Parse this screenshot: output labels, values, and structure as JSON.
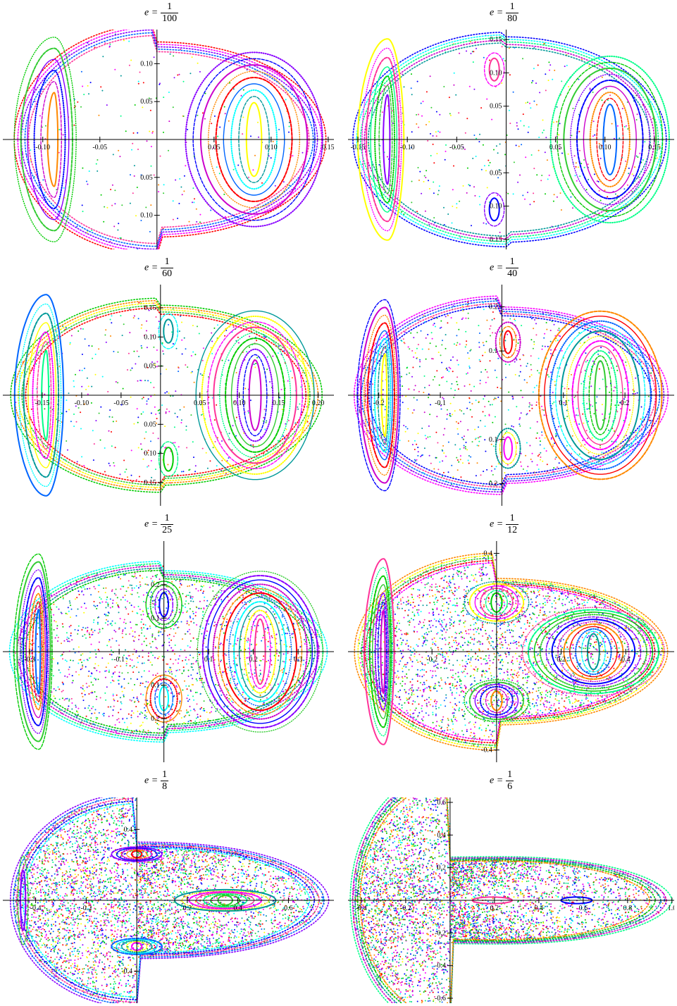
{
  "colors": [
    "#ff0000",
    "#0000ff",
    "#00cc00",
    "#ff00ff",
    "#00ffff",
    "#ff8800",
    "#8800ff",
    "#00ff88",
    "#ffff00",
    "#0066ff",
    "#cc00cc",
    "#33cc33",
    "#ff3399",
    "#009999"
  ],
  "panels": [
    {
      "title": {
        "var": "e",
        "eq": "=",
        "num": "1",
        "den": "100"
      },
      "chart_data": {
        "type": "scatter",
        "xlim": [
          -0.135,
          0.155
        ],
        "ylim": [
          -0.145,
          0.145
        ],
        "x_ticks": [
          -0.1,
          -0.05,
          0.05,
          0.1,
          0.15
        ],
        "x_tick_labels": [
          "-0.10",
          "-0.05",
          "0.05",
          "0.10",
          "0.15"
        ],
        "y_ticks": [
          0.1,
          0.05,
          -0.05,
          -0.1
        ],
        "y_tick_labels": [
          "0.10",
          "0.05",
          "0.05",
          "0.10"
        ],
        "grid": false,
        "outer_boundary": {
          "x_left": -0.125,
          "x_right": 0.148,
          "y_half": 0.138,
          "tip": 0
        },
        "islands": [
          {
            "cx": -0.09,
            "cy": 0,
            "rx_max": 0.035,
            "ry_max": 0.125,
            "rings": 6,
            "shape": "D"
          },
          {
            "cx": 0.085,
            "cy": 0,
            "rx_max": 0.06,
            "ry_max": 0.115,
            "rings": 9,
            "shape": "oval"
          }
        ],
        "chaos_density": 0.05
      }
    },
    {
      "title": {
        "var": "e",
        "eq": "=",
        "num": "1",
        "den": "80"
      },
      "chart_data": {
        "type": "scatter",
        "xlim": [
          -0.16,
          0.17
        ],
        "ylim": [
          -0.165,
          0.165
        ],
        "x_ticks": [
          -0.15,
          -0.1,
          -0.05,
          0.05,
          0.1,
          0.15
        ],
        "x_tick_labels": [
          "-0.15",
          "-0.10",
          "-0.05",
          "0.05",
          "0.10",
          "0.15"
        ],
        "y_ticks": [
          0.15,
          0.1,
          0.05,
          -0.05,
          -0.1,
          -0.15
        ],
        "y_tick_labels": [
          "0.15",
          "0.10",
          "0.05",
          "0.05",
          "0.10",
          "0.15"
        ],
        "grid": false,
        "outer_boundary": {
          "x_left": -0.155,
          "x_right": 0.162,
          "y_half": 0.158,
          "tip": 0
        },
        "islands": [
          {
            "cx": -0.12,
            "cy": 0,
            "rx_max": 0.03,
            "ry_max": 0.14,
            "rings": 7,
            "shape": "D"
          },
          {
            "cx": 0.105,
            "cy": 0,
            "rx_max": 0.06,
            "ry_max": 0.125,
            "rings": 9,
            "shape": "oval"
          },
          {
            "cx": -0.012,
            "cy": 0.105,
            "rx_max": 0.01,
            "ry_max": 0.025,
            "rings": 2,
            "shape": "oval"
          },
          {
            "cx": -0.012,
            "cy": -0.105,
            "rx_max": 0.01,
            "ry_max": 0.025,
            "rings": 2,
            "shape": "oval"
          }
        ],
        "chaos_density": 0.08
      }
    },
    {
      "title": {
        "var": "e",
        "eq": "=",
        "num": "1",
        "den": "60"
      },
      "chart_data": {
        "type": "scatter",
        "xlim": [
          -0.2,
          0.22
        ],
        "ylim": [
          -0.19,
          0.19
        ],
        "x_ticks": [
          -0.15,
          -0.1,
          -0.05,
          0.05,
          0.1,
          0.15,
          0.2
        ],
        "x_tick_labels": [
          "-0.15",
          "-0.10",
          "-0.05",
          "0.05",
          "0.10",
          "0.15",
          "0.20"
        ],
        "y_ticks": [
          0.15,
          0.1,
          0.05,
          -0.05,
          -0.1,
          -0.15
        ],
        "y_tick_labels": [
          "0.15",
          "0.10",
          "0.05",
          "0.05",
          "0.10",
          "0.15"
        ],
        "grid": false,
        "outer_boundary": {
          "x_left": -0.19,
          "x_right": 0.205,
          "y_half": 0.178,
          "tip": 0
        },
        "islands": [
          {
            "cx": -0.145,
            "cy": 0,
            "rx_max": 0.04,
            "ry_max": 0.16,
            "rings": 7,
            "shape": "D"
          },
          {
            "cx": 0.12,
            "cy": 0,
            "rx_max": 0.075,
            "ry_max": 0.145,
            "rings": 10,
            "shape": "oval"
          },
          {
            "cx": 0.01,
            "cy": 0.11,
            "rx_max": 0.012,
            "ry_max": 0.03,
            "rings": 2,
            "shape": "oval"
          },
          {
            "cx": 0.01,
            "cy": -0.11,
            "rx_max": 0.012,
            "ry_max": 0.03,
            "rings": 2,
            "shape": "oval"
          }
        ],
        "chaos_density": 0.1
      }
    },
    {
      "title": {
        "var": "e",
        "eq": "=",
        "num": "1",
        "den": "40"
      },
      "chart_data": {
        "type": "scatter",
        "xlim": [
          -0.25,
          0.28
        ],
        "ylim": [
          -0.25,
          0.25
        ],
        "x_ticks": [
          -0.2,
          -0.1,
          0.1,
          0.2
        ],
        "x_tick_labels": [
          "-0.2",
          "-0.1",
          "0.1",
          "0.2"
        ],
        "y_ticks": [
          0.2,
          0.1,
          -0.1,
          -0.2
        ],
        "y_tick_labels": [
          "0.2",
          "0.1",
          "0.1",
          "0.2"
        ],
        "grid": false,
        "outer_boundary": {
          "x_left": -0.24,
          "x_right": 0.27,
          "y_half": 0.232,
          "tip": 0
        },
        "islands": [
          {
            "cx": -0.19,
            "cy": 0,
            "rx_max": 0.045,
            "ry_max": 0.2,
            "rings": 8,
            "shape": "D"
          },
          {
            "cx": 0.16,
            "cy": 0,
            "rx_max": 0.1,
            "ry_max": 0.19,
            "rings": 11,
            "shape": "oval"
          },
          {
            "cx": 0.01,
            "cy": 0.12,
            "rx_max": 0.02,
            "ry_max": 0.045,
            "rings": 3,
            "shape": "oval"
          },
          {
            "cx": 0.01,
            "cy": -0.12,
            "rx_max": 0.02,
            "ry_max": 0.045,
            "rings": 3,
            "shape": "oval"
          }
        ],
        "chaos_density": 0.18
      }
    },
    {
      "title": {
        "var": "e",
        "eq": "=",
        "num": "1",
        "den": "25"
      },
      "chart_data": {
        "type": "scatter",
        "xlim": [
          -0.36,
          0.38
        ],
        "ylim": [
          -0.33,
          0.33
        ],
        "x_ticks": [
          -0.3,
          -0.1,
          0.1,
          0.2,
          0.3
        ],
        "x_tick_labels": [
          "-0.3",
          "-0.1",
          "0.1",
          "0.2",
          "0.3"
        ],
        "y_ticks": [
          0.2,
          0.1,
          -0.1,
          -0.2
        ],
        "y_tick_labels": [
          "0.2",
          "0.1",
          "0.1",
          "0.2"
        ],
        "grid": false,
        "outer_boundary": {
          "x_left": -0.345,
          "x_right": 0.365,
          "y_half": 0.305,
          "tip": 0.15
        },
        "islands": [
          {
            "cx": -0.28,
            "cy": 0,
            "rx_max": 0.055,
            "ry_max": 0.27,
            "rings": 8,
            "shape": "D"
          },
          {
            "cx": 0.215,
            "cy": 0,
            "rx_max": 0.14,
            "ry_max": 0.24,
            "rings": 12,
            "shape": "oval"
          },
          {
            "cx": 0.0,
            "cy": 0.14,
            "rx_max": 0.04,
            "ry_max": 0.07,
            "rings": 4,
            "shape": "oval"
          },
          {
            "cx": 0.0,
            "cy": -0.14,
            "rx_max": 0.04,
            "ry_max": 0.07,
            "rings": 4,
            "shape": "oval"
          }
        ],
        "chaos_density": 0.35
      }
    },
    {
      "title": {
        "var": "e",
        "eq": "=",
        "num": "1",
        "den": "12"
      },
      "chart_data": {
        "type": "scatter",
        "xlim": [
          -0.46,
          0.55
        ],
        "ylim": [
          -0.45,
          0.45
        ],
        "x_ticks": [
          -0.2,
          0.2,
          0.4
        ],
        "x_tick_labels": [
          "-0.2",
          "0.2",
          "0.4"
        ],
        "y_ticks": [
          0.4,
          -0.4
        ],
        "y_tick_labels": [
          "0.4",
          "-0.4"
        ],
        "grid": false,
        "outer_boundary": {
          "x_left": -0.44,
          "x_right": 0.53,
          "y_half": 0.42,
          "tip": 0.3
        },
        "islands": [
          {
            "cx": -0.35,
            "cy": 0,
            "rx_max": 0.06,
            "ry_max": 0.35,
            "rings": 7,
            "shape": "D"
          },
          {
            "cx": 0.3,
            "cy": 0,
            "rx_max": 0.22,
            "ry_max": 0.18,
            "rings": 12,
            "shape": "oval"
          },
          {
            "cx": 0.0,
            "cy": 0.2,
            "rx_max": 0.1,
            "ry_max": 0.085,
            "rings": 6,
            "shape": "oval"
          },
          {
            "cx": 0.0,
            "cy": -0.2,
            "rx_max": 0.1,
            "ry_max": 0.085,
            "rings": 6,
            "shape": "oval"
          }
        ],
        "chaos_density": 0.6
      }
    },
    {
      "title": {
        "var": "e",
        "eq": "=",
        "num": "1",
        "den": "8"
      },
      "chart_data": {
        "type": "scatter",
        "xlim": [
          -0.53,
          0.78
        ],
        "ylim": [
          -0.58,
          0.58
        ],
        "x_ticks": [
          -0.4,
          -0.2,
          0.2,
          0.4,
          0.6
        ],
        "x_tick_labels": [
          "-0.4",
          "-0.2",
          "0.2",
          "0.4",
          "0.6"
        ],
        "y_ticks": [
          0.4,
          -0.4
        ],
        "y_tick_labels": [
          "0.4",
          "-0.4"
        ],
        "grid": false,
        "outer_boundary": {
          "x_left": -0.5,
          "x_right": 0.76,
          "y_half": 0.55,
          "tip": 0.5
        },
        "islands": [
          {
            "cx": 0.35,
            "cy": 0,
            "rx_max": 0.2,
            "ry_max": 0.06,
            "rings": 7,
            "shape": "oval"
          },
          {
            "cx": 0.0,
            "cy": 0.26,
            "rx_max": 0.1,
            "ry_max": 0.04,
            "rings": 5,
            "shape": "oval"
          },
          {
            "cx": 0.0,
            "cy": -0.26,
            "rx_max": 0.1,
            "ry_max": 0.045,
            "rings": 5,
            "shape": "oval"
          },
          {
            "cx": -0.45,
            "cy": 0,
            "rx_max": 0.02,
            "ry_max": 0.25,
            "rings": 2,
            "shape": "oval"
          }
        ],
        "chaos_density": 1.0
      }
    },
    {
      "title": {
        "var": "e",
        "eq": "=",
        "num": "1",
        "den": "6"
      },
      "chart_data": {
        "type": "scatter",
        "xlim": [
          -0.46,
          1.01
        ],
        "ylim": [
          -0.63,
          0.63
        ],
        "x_ticks": [
          -0.4,
          -0.2,
          0.2,
          0.4,
          0.6,
          0.8,
          1.0
        ],
        "x_tick_labels": [
          "-0.4",
          "-0.2",
          "0.2",
          "0.4",
          "0.6",
          "0.8",
          "1.0"
        ],
        "y_ticks": [
          0.6,
          0.4,
          0.2,
          -0.2,
          -0.4,
          -0.6
        ],
        "y_tick_labels": [
          "0.6",
          "0.4",
          "0.2",
          "-0.2",
          "-0.4",
          "-0.6"
        ],
        "grid": false,
        "outer_boundary": {
          "x_left": -0.45,
          "x_right": 1.0,
          "y_half": 0.6,
          "tip": 0.75
        },
        "islands": [
          {
            "cx": 0.19,
            "cy": 0,
            "rx_max": 0.09,
            "ry_max": 0.02,
            "rings": 1,
            "shape": "oval"
          },
          {
            "cx": 0.57,
            "cy": 0,
            "rx_max": 0.07,
            "ry_max": 0.02,
            "rings": 1,
            "shape": "oval"
          }
        ],
        "chaos_density": 1.3
      }
    }
  ]
}
